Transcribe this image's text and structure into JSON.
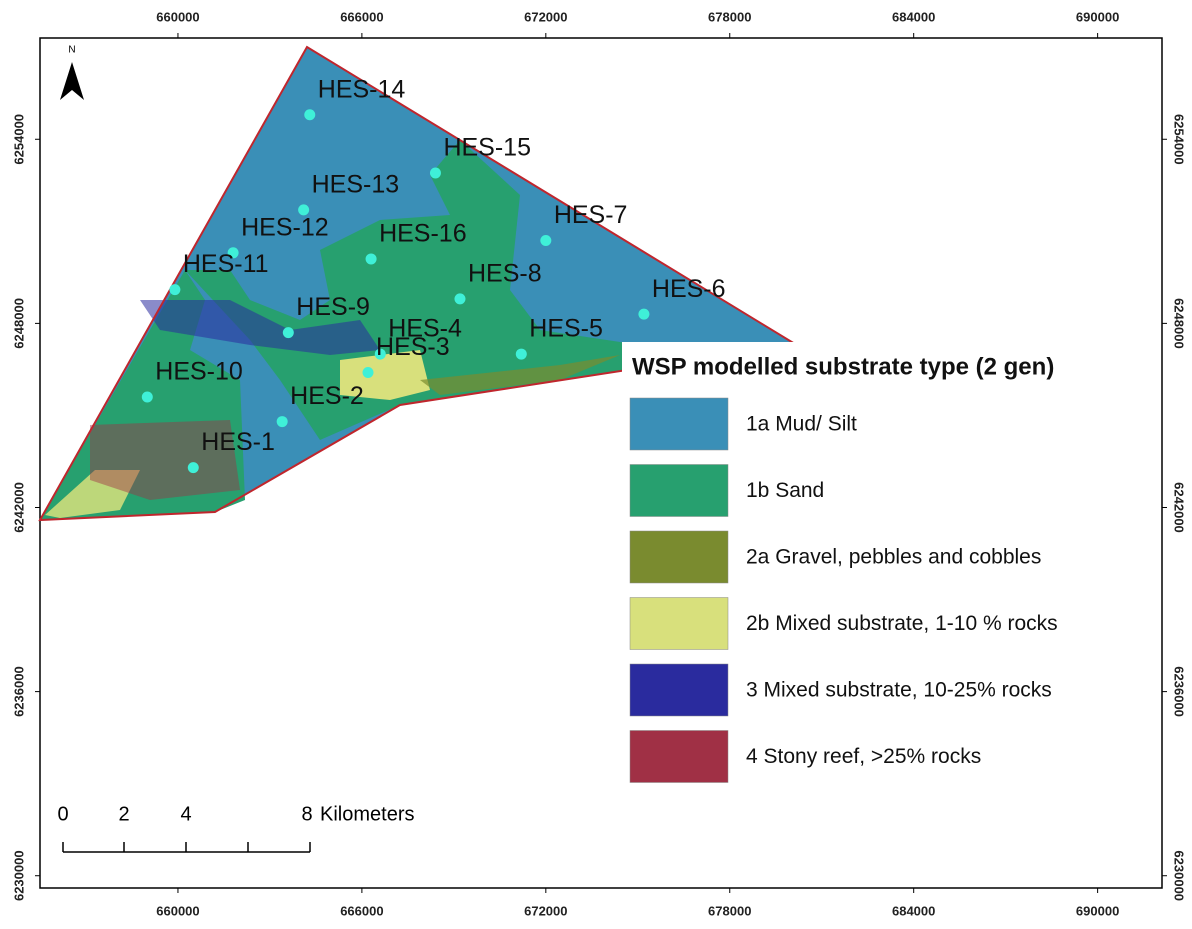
{
  "north": "N",
  "x_axis": {
    "xlim": [
      655500,
      692100
    ],
    "xticks": [
      660000,
      666000,
      672000,
      678000,
      684000,
      690000
    ]
  },
  "y_axis": {
    "ylim": [
      6229600,
      6257300
    ],
    "yticks": [
      6230000,
      6236000,
      6242000,
      6248000,
      6254000
    ]
  },
  "stations": [
    {
      "name": "HES-14",
      "x": 664300,
      "y": 6254800
    },
    {
      "name": "HES-15",
      "x": 668400,
      "y": 6252900
    },
    {
      "name": "HES-13",
      "x": 664100,
      "y": 6251700
    },
    {
      "name": "HES-12",
      "x": 661800,
      "y": 6250300
    },
    {
      "name": "HES-16",
      "x": 666300,
      "y": 6250100
    },
    {
      "name": "HES-7",
      "x": 672000,
      "y": 6250700
    },
    {
      "name": "HES-11",
      "x": 659900,
      "y": 6249100
    },
    {
      "name": "HES-8",
      "x": 669200,
      "y": 6248800
    },
    {
      "name": "HES-6",
      "x": 675200,
      "y": 6248300
    },
    {
      "name": "HES-9",
      "x": 663600,
      "y": 6247700
    },
    {
      "name": "HES-5",
      "x": 671200,
      "y": 6247000
    },
    {
      "name": "HES-4",
      "x": 666600,
      "y": 6247000
    },
    {
      "name": "HES-10",
      "x": 659000,
      "y": 6245600
    },
    {
      "name": "HES-3",
      "x": 666200,
      "y": 6246400
    },
    {
      "name": "HES-2",
      "x": 663400,
      "y": 6244800
    },
    {
      "name": "HES-1",
      "x": 660500,
      "y": 6243300
    }
  ],
  "legend": {
    "title": "WSP modelled substrate type (2 gen)",
    "items": [
      {
        "label": "1a Mud/ Silt",
        "color": "#3a8fb7"
      },
      {
        "label": "1b Sand",
        "color": "#27a06f"
      },
      {
        "label": "2a Gravel, pebbles and cobbles",
        "color": "#7a8b2f"
      },
      {
        "label": "2b Mixed substrate, 1-10 % rocks",
        "color": "#d8e07c"
      },
      {
        "label": "3 Mixed substrate, 10-25% rocks",
        "color": "#2a2b9e"
      },
      {
        "label": "4 Stony reef, >25% rocks",
        "color": "#a03045"
      }
    ]
  },
  "scale_bar": {
    "labels": [
      "0",
      "2",
      "4",
      "8"
    ],
    "unit": "Kilometers"
  }
}
